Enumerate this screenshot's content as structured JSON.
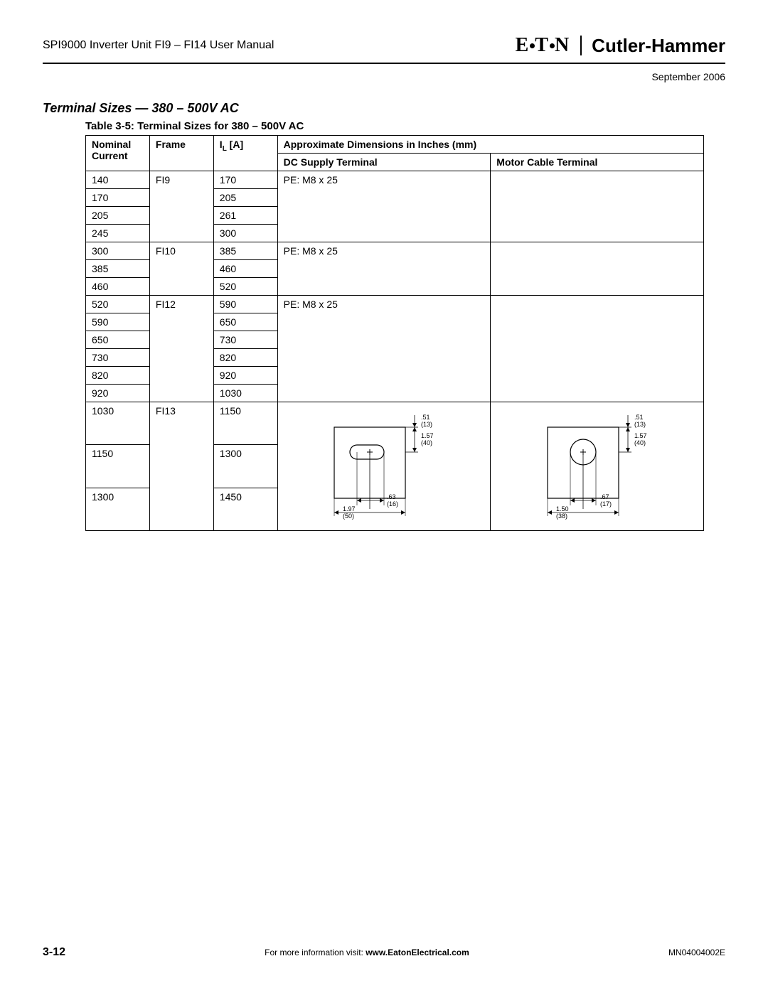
{
  "header": {
    "doc_title": "SPI9000 Inverter Unit FI9 – FI14 User Manual",
    "brand_left": "E T N",
    "brand_right": "Cutler-Hammer"
  },
  "date": "September 2006",
  "section_title": "Terminal Sizes — 380 – 500V AC",
  "table_caption": "Table 3-5: Terminal Sizes for 380 – 500V AC",
  "head": {
    "nominal": "Nominal Current",
    "frame": "Frame",
    "il": "I",
    "il_sub": "L",
    "il_unit": " [A]",
    "approx": "Approximate Dimensions in Inches (mm)",
    "dc": "DC Supply Terminal",
    "motor": "Motor Cable Terminal"
  },
  "groups": [
    {
      "frame": "FI9",
      "pe": "PE: M8 x 25",
      "rows": [
        {
          "nc": "140",
          "il": "170"
        },
        {
          "nc": "170",
          "il": "205"
        },
        {
          "nc": "205",
          "il": "261"
        },
        {
          "nc": "245",
          "il": "300"
        }
      ]
    },
    {
      "frame": "FI10",
      "pe": "PE: M8 x 25",
      "rows": [
        {
          "nc": "300",
          "il": "385"
        },
        {
          "nc": "385",
          "il": "460"
        },
        {
          "nc": "460",
          "il": "520"
        }
      ]
    },
    {
      "frame": "FI12",
      "pe": "PE: M8 x 25",
      "rows": [
        {
          "nc": "520",
          "il": "590"
        },
        {
          "nc": "590",
          "il": "650"
        },
        {
          "nc": "650",
          "il": "730"
        },
        {
          "nc": "730",
          "il": "820"
        },
        {
          "nc": "820",
          "il": "920"
        },
        {
          "nc": "920",
          "il": "1030"
        }
      ]
    },
    {
      "frame": "FI13",
      "rows": [
        {
          "nc": "1030",
          "il": "1150"
        },
        {
          "nc": "1150",
          "il": "1300"
        },
        {
          "nc": "1300",
          "il": "1450"
        }
      ]
    }
  ],
  "diagrams": {
    "dc": {
      "top_in": ".51",
      "top_mm": "(13)",
      "h_in": "1.57",
      "h_mm": "(40)",
      "slot_in": ".63",
      "slot_mm": "(16)",
      "w_in": "1.97",
      "w_mm": "(50)"
    },
    "motor": {
      "top_in": ".51",
      "top_mm": "(13)",
      "h_in": "1.57",
      "h_mm": "(40)",
      "slot_in": ".67",
      "slot_mm": "(17)",
      "w_in": "1.50",
      "w_mm": "(38)"
    }
  },
  "footer": {
    "page": "3-12",
    "info": "For more information visit: ",
    "url": "www.EatonElectrical.com",
    "doc_no": "MN04004002E"
  },
  "colors": {
    "text": "#000000",
    "bg": "#ffffff",
    "rule": "#000000"
  }
}
